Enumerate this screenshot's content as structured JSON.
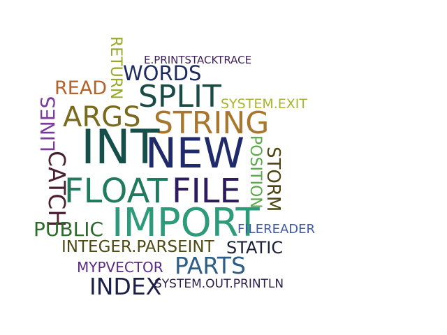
{
  "words": {
    "w0": {
      "text": "E.PRINTSTACKTRACE",
      "color": "#3b1f5a"
    },
    "w1": {
      "text": "RETURN",
      "color": "#9aa82a"
    },
    "w2": {
      "text": "WORDS",
      "color": "#1c2a5e"
    },
    "w3": {
      "text": "READ",
      "color": "#b4612a"
    },
    "w4": {
      "text": "SPLIT",
      "color": "#1a4a44"
    },
    "w5": {
      "text": "SYSTEM.EXIT",
      "color": "#aab52c"
    },
    "w6": {
      "text": "LINES",
      "color": "#7a3c9a"
    },
    "w7": {
      "text": "ARGS",
      "color": "#7a6a1e"
    },
    "w8": {
      "text": "STRING",
      "color": "#a8772e"
    },
    "w9": {
      "text": "INT",
      "color": "#164e4a"
    },
    "w10": {
      "text": "NEW",
      "color": "#1e2a6a"
    },
    "w11": {
      "text": "POSITION",
      "color": "#5aa84a"
    },
    "w12": {
      "text": "STORM",
      "color": "#4e4410"
    },
    "w13": {
      "text": "CATCH",
      "color": "#4a1f30"
    },
    "w14": {
      "text": "FLOAT",
      "color": "#1f7a5e"
    },
    "w15": {
      "text": "FILE",
      "color": "#2e1d5e"
    },
    "w16": {
      "text": "IMPORT",
      "color": "#2d9a7a"
    },
    "w17": {
      "text": "PUBLIC",
      "color": "#2e6a2a"
    },
    "w18": {
      "text": "FILEREADER",
      "color": "#3d5aaa"
    },
    "w19": {
      "text": "INTEGER.PARSEINT",
      "color": "#4e4a14"
    },
    "w20": {
      "text": "STATIC",
      "color": "#1a1f3a"
    },
    "w21": {
      "text": "MYPVECTOR",
      "color": "#5a2a8a"
    },
    "w22": {
      "text": "PARTS",
      "color": "#2d5e86"
    },
    "w23": {
      "text": "INDEX",
      "color": "#1c2048"
    },
    "w24": {
      "text": "SYSTEM.OUT.PRINTLN",
      "color": "#2a1f48"
    }
  }
}
